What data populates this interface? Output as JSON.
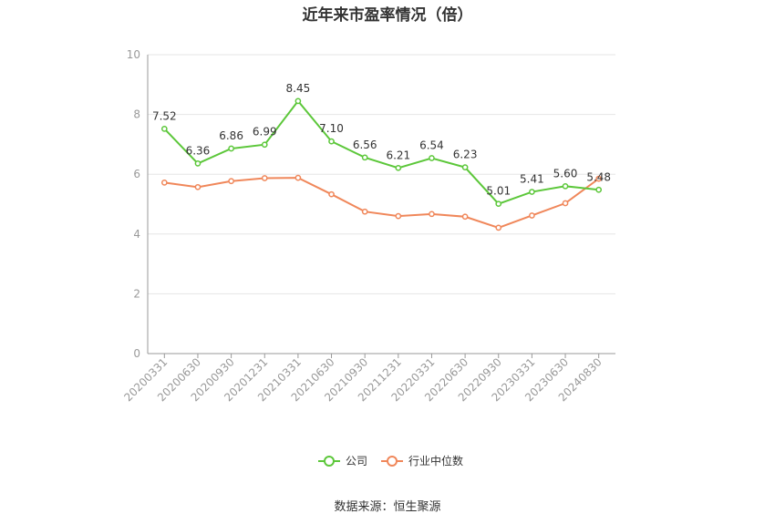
{
  "chart_data": {
    "type": "line",
    "title": "近年来市盈率情况（倍）",
    "categories": [
      "20200331",
      "20200630",
      "20200930",
      "20201231",
      "20210331",
      "20210630",
      "20210930",
      "20211231",
      "20220331",
      "20220630",
      "20220930",
      "20230331",
      "20230630",
      "20240830"
    ],
    "series": [
      {
        "name": "公司",
        "color": "#5cc73a",
        "values": [
          7.52,
          6.36,
          6.86,
          6.99,
          8.45,
          7.1,
          6.56,
          6.21,
          6.54,
          6.23,
          5.01,
          5.41,
          5.6,
          5.48
        ],
        "labels": [
          "7.52",
          "6.36",
          "6.86",
          "6.99",
          "8.45",
          "7.10",
          "6.56",
          "6.21",
          "6.54",
          "6.23",
          "5.01",
          "5.41",
          "5.60",
          "5.48"
        ]
      },
      {
        "name": "行业中位数",
        "color": "#f0875a",
        "values": [
          5.72,
          5.57,
          5.77,
          5.87,
          5.88,
          5.33,
          4.75,
          4.6,
          4.67,
          4.58,
          4.21,
          4.62,
          5.03,
          5.85
        ]
      }
    ],
    "yticks": [
      "0",
      "2",
      "4",
      "6",
      "8",
      "10"
    ],
    "ylim": [
      0,
      10
    ],
    "grid": true,
    "legend_position": "bottom"
  },
  "source": "数据来源：恒生聚源"
}
